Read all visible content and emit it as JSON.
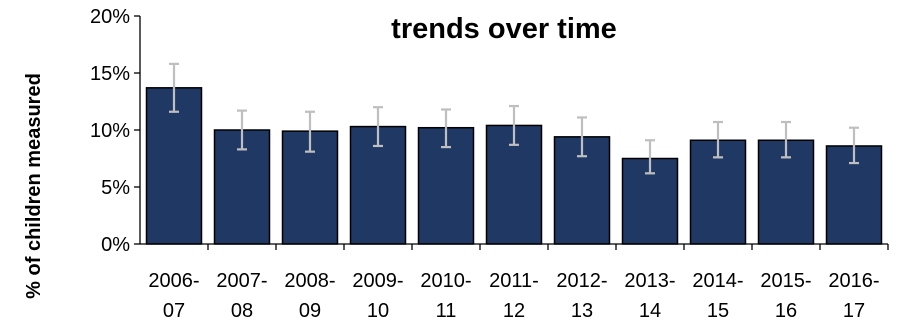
{
  "chart_data": {
    "type": "bar",
    "title": "trends over time",
    "xlabel": "",
    "ylabel": "% of children measured",
    "ylim": [
      0,
      20
    ],
    "y_ticks": [
      "0%",
      "5%",
      "10%",
      "15%",
      "20%"
    ],
    "y_tick_values": [
      0,
      5,
      10,
      15,
      20
    ],
    "categories": [
      [
        "2006-",
        "07"
      ],
      [
        "2007-",
        "08"
      ],
      [
        "2008-",
        "09"
      ],
      [
        "2009-",
        "10"
      ],
      [
        "2010-",
        "11"
      ],
      [
        "2011-",
        "12"
      ],
      [
        "2012-",
        "13"
      ],
      [
        "2013-",
        "14"
      ],
      [
        "2014-",
        "15"
      ],
      [
        "2015-",
        "16"
      ],
      [
        "2016-",
        "17"
      ]
    ],
    "values": [
      13.7,
      10.0,
      9.9,
      10.3,
      10.2,
      10.4,
      9.4,
      7.5,
      9.1,
      9.1,
      8.6
    ],
    "error_low": [
      11.6,
      8.3,
      8.1,
      8.6,
      8.5,
      8.7,
      7.7,
      6.2,
      7.6,
      7.6,
      7.1
    ],
    "error_high": [
      15.8,
      11.7,
      11.6,
      12.0,
      11.8,
      12.1,
      11.1,
      9.1,
      10.7,
      10.7,
      10.2
    ],
    "grid": false,
    "legend": "none",
    "colors": {
      "bar": "#1f3864",
      "bar_border": "#000000",
      "error_bar": "#bfbfbf",
      "axis": "#000000"
    }
  }
}
